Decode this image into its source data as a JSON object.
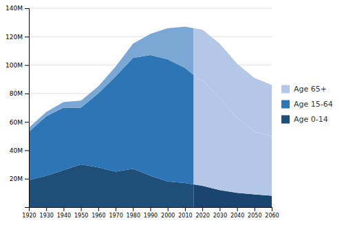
{
  "chart_data": {
    "type": "area",
    "stacked": true,
    "x": [
      1920,
      1930,
      1940,
      1950,
      1960,
      1970,
      1980,
      1990,
      2000,
      2010,
      2015,
      2020,
      2030,
      2040,
      2050,
      2060
    ],
    "series": [
      {
        "name": "Age 0-14",
        "color": "#1f4e79",
        "colors": [
          "#1f4e79",
          "#1f4e79",
          "#1f4e79",
          "#1f4e79",
          "#1f4e79",
          "#1f4e79",
          "#1f4e79",
          "#1f4e79",
          "#1f4e79",
          "#1f4e79",
          "#1f4e79",
          "#1a4570",
          "#1a4570",
          "#1a4570",
          "#1a4570",
          "#1a4570"
        ],
        "values": [
          19,
          22,
          26,
          30,
          28,
          25,
          27,
          22,
          18,
          17,
          16,
          15,
          12,
          10,
          9,
          8
        ]
      },
      {
        "name": "Age 15-64",
        "color": "#2e75b6",
        "colors": [
          "#2e75b6",
          "#2e75b6",
          "#2e75b6",
          "#2e75b6",
          "#2e75b6",
          "#2e75b6",
          "#2e75b6",
          "#2e75b6",
          "#2e75b6",
          "#2e75b6",
          "#2e75b6",
          "#b4c7e7",
          "#b4c7e7",
          "#b4c7e7",
          "#b4c7e7",
          "#b4c7e7"
        ],
        "values": [
          34,
          42,
          44,
          40,
          52,
          67,
          78,
          85,
          86,
          81,
          77,
          74,
          65,
          53,
          44,
          42
        ]
      },
      {
        "name": "Age 65+",
        "color": "#b4c7e7",
        "colors": [
          "#7ba7d4",
          "#7ba7d4",
          "#7ba7d4",
          "#7ba7d4",
          "#7ba7d4",
          "#7ba7d4",
          "#7ba7d4",
          "#7ba7d4",
          "#7ba7d4",
          "#7ba7d4",
          "#7ba7d4",
          "#b4c7e7",
          "#b4c7e7",
          "#b4c7e7",
          "#b4c7e7",
          "#b4c7e7"
        ],
        "values": [
          3,
          3,
          4,
          5,
          5,
          7,
          10,
          15,
          22,
          29,
          33,
          36,
          38,
          38,
          38,
          36
        ]
      }
    ],
    "xlim": [
      1920,
      2060
    ],
    "xticks": [
      1920,
      1930,
      1940,
      1950,
      1960,
      1970,
      1980,
      1990,
      2000,
      2010,
      2020,
      2030,
      2040,
      2050,
      2060
    ],
    "ylim": [
      0,
      140
    ],
    "yticks": [
      {
        "value": 20,
        "label": "20M"
      },
      {
        "value": 40,
        "label": "40M"
      },
      {
        "value": 60,
        "label": "60M"
      },
      {
        "value": 80,
        "label": "80M"
      },
      {
        "value": 100,
        "label": "100M"
      },
      {
        "value": 120,
        "label": "120M"
      },
      {
        "value": 140,
        "label": "140M"
      }
    ],
    "grid": "y",
    "legend": "right"
  }
}
